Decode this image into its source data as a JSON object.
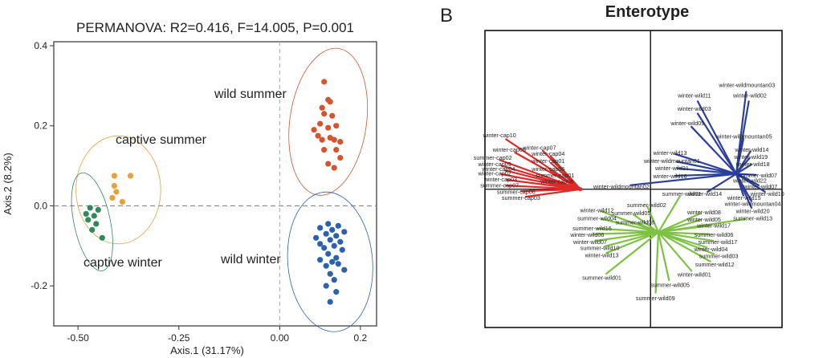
{
  "colors": {
    "wild_summer": "#d4552b",
    "wild_winter": "#2b62b0",
    "captive_summer": "#e9a03a",
    "captive_winter": "#2e8a5a",
    "red": "#e02a2a",
    "blue": "#2a3f9e",
    "green": "#7dc243",
    "axis": "#333333"
  },
  "panel_a": {
    "title": "PERMANOVA: R2=0.416, F=14.005, P=0.001",
    "xlabel": "Axis.1 (31.17%)",
    "ylabel": "Axis.2 (8.2%)",
    "xlim": [
      -0.56,
      0.24
    ],
    "ylim": [
      -0.3,
      0.41
    ],
    "xticks": [
      {
        "v": -0.5,
        "label": "-0.50"
      },
      {
        "v": -0.25,
        "label": "-0.25"
      },
      {
        "v": 0,
        "label": "0.00"
      },
      {
        "v": 0.2,
        "label": "0.2"
      }
    ],
    "yticks": [
      {
        "v": 0.4,
        "label": "0.4"
      },
      {
        "v": 0.2,
        "label": "0.2"
      },
      {
        "v": 0,
        "label": "0.0"
      },
      {
        "v": -0.2,
        "label": "-0.2"
      }
    ],
    "group_labels": {
      "wild_summer": "wild summer",
      "captive_summer": "captive summer",
      "captive_winter": "captive winter",
      "wild_winter": "wild winter"
    }
  },
  "panel_b": {
    "letter": "B",
    "title": "Enterotype"
  },
  "chart_data": [
    {
      "type": "scatter",
      "title": "PERMANOVA: R2=0.416, F=14.005, P=0.001",
      "xlabel": "Axis.1 (31.17%)",
      "ylabel": "Axis.2 (8.2%)",
      "xlim": [
        -0.56,
        0.24
      ],
      "ylim": [
        -0.3,
        0.41
      ],
      "series": [
        {
          "name": "wild summer",
          "color": "#d4552b",
          "points": [
            [
              0.11,
              0.31
            ],
            [
              0.12,
              0.265
            ],
            [
              0.105,
              0.245
            ],
            [
              0.125,
              0.26
            ],
            [
              0.11,
              0.23
            ],
            [
              0.13,
              0.225
            ],
            [
              0.1,
              0.205
            ],
            [
              0.14,
              0.2
            ],
            [
              0.12,
              0.195
            ],
            [
              0.085,
              0.19
            ],
            [
              0.095,
              0.175
            ],
            [
              0.125,
              0.17
            ],
            [
              0.105,
              0.165
            ],
            [
              0.135,
              0.165
            ],
            [
              0.15,
              0.16
            ],
            [
              0.11,
              0.14
            ],
            [
              0.14,
              0.14
            ],
            [
              0.15,
              0.12
            ],
            [
              0.12,
              0.105
            ],
            [
              0.135,
              0.095
            ]
          ]
        },
        {
          "name": "captive summer",
          "color": "#e9a03a",
          "points": [
            [
              -0.41,
              0.075
            ],
            [
              -0.37,
              0.075
            ],
            [
              -0.41,
              0.05
            ],
            [
              -0.405,
              0.035
            ],
            [
              -0.415,
              0.02
            ],
            [
              -0.39,
              0.01
            ]
          ]
        },
        {
          "name": "captive winter",
          "color": "#2e8a5a",
          "points": [
            [
              -0.47,
              -0.005
            ],
            [
              -0.45,
              -0.01
            ],
            [
              -0.48,
              -0.02
            ],
            [
              -0.46,
              -0.025
            ],
            [
              -0.475,
              -0.035
            ],
            [
              -0.455,
              -0.045
            ],
            [
              -0.465,
              -0.06
            ],
            [
              -0.44,
              -0.08
            ]
          ]
        },
        {
          "name": "wild winter",
          "color": "#2b62b0",
          "points": [
            [
              0.12,
              -0.045
            ],
            [
              0.145,
              -0.05
            ],
            [
              0.1,
              -0.055
            ],
            [
              0.13,
              -0.06
            ],
            [
              0.16,
              -0.065
            ],
            [
              0.115,
              -0.07
            ],
            [
              0.14,
              -0.075
            ],
            [
              0.09,
              -0.08
            ],
            [
              0.125,
              -0.085
            ],
            [
              0.15,
              -0.09
            ],
            [
              0.1,
              -0.095
            ],
            [
              0.135,
              -0.1
            ],
            [
              0.11,
              -0.105
            ],
            [
              0.155,
              -0.11
            ],
            [
              0.12,
              -0.12
            ],
            [
              0.14,
              -0.13
            ],
            [
              0.1,
              -0.135
            ],
            [
              0.13,
              -0.14
            ],
            [
              0.145,
              -0.145
            ],
            [
              0.115,
              -0.15
            ],
            [
              0.16,
              -0.16
            ],
            [
              0.125,
              -0.17
            ],
            [
              0.135,
              -0.185
            ],
            [
              0.115,
              -0.2
            ],
            [
              0.14,
              -0.215
            ],
            [
              0.125,
              -0.24
            ]
          ]
        }
      ],
      "ellipses": [
        {
          "group": "wild summer",
          "cx": 0.12,
          "cy": 0.21,
          "rx": 0.095,
          "ry": 0.185,
          "rot": 8
        },
        {
          "group": "captive summer",
          "cx": -0.4,
          "cy": 0.04,
          "rx": 0.105,
          "ry": 0.135,
          "rot": 0
        },
        {
          "group": "captive winter",
          "cx": -0.465,
          "cy": -0.04,
          "rx": 0.045,
          "ry": 0.125,
          "rot": -12
        },
        {
          "group": "wild winter",
          "cx": 0.125,
          "cy": -0.14,
          "rx": 0.105,
          "ry": 0.175,
          "rot": -5
        }
      ],
      "refline": {
        "x": 0,
        "y": 0,
        "style": "dashed"
      }
    },
    {
      "type": "scatter",
      "title": "Enterotype",
      "xlim": [
        -1.7,
        1.35
      ],
      "ylim": [
        -1.35,
        1.55
      ],
      "refline": {
        "x": 0,
        "y": 0,
        "style": "solid"
      },
      "clusters": [
        {
          "name": "red",
          "color": "#e02a2a",
          "center": [
            -0.72,
            0.0
          ],
          "labels": [
            {
              "t": "winter-cap10",
              "x": -1.55,
              "y": 0.53
            },
            {
              "t": "winter-cap07",
              "x": -1.14,
              "y": 0.41
            },
            {
              "t": "winter-cap05",
              "x": -1.45,
              "y": 0.39
            },
            {
              "t": "winter-cap04",
              "x": -1.05,
              "y": 0.35
            },
            {
              "t": "summer-cap02",
              "x": -1.62,
              "y": 0.31
            },
            {
              "t": "winter-cap01",
              "x": -1.05,
              "y": 0.28
            },
            {
              "t": "winter-cap09",
              "x": -1.6,
              "y": 0.25
            },
            {
              "t": "winter-cap04",
              "x": -1.56,
              "y": 0.2
            },
            {
              "t": "winter-cap06",
              "x": -1.05,
              "y": 0.2
            },
            {
              "t": "winter-cap02",
              "x": -1.6,
              "y": 0.16
            },
            {
              "t": "summer-cap01",
              "x": -0.98,
              "y": 0.14
            },
            {
              "t": "winter-cap03",
              "x": -1.54,
              "y": 0.1
            },
            {
              "t": "winter-cap08",
              "x": -0.96,
              "y": 0.08
            },
            {
              "t": "summer-cap07",
              "x": -1.55,
              "y": 0.04
            },
            {
              "t": "summer-cap06",
              "x": -1.38,
              "y": -0.02
            },
            {
              "t": "summer-cap03",
              "x": -1.33,
              "y": -0.08
            }
          ]
        },
        {
          "name": "blue",
          "color": "#2a3f9e",
          "center": [
            0.88,
            0.15
          ],
          "labels": [
            {
              "t": "winter-wildmountan03",
              "x": 0.99,
              "y": 1.02
            },
            {
              "t": "winter-wild11",
              "x": 0.45,
              "y": 0.92
            },
            {
              "t": "winter-wild02",
              "x": 1.02,
              "y": 0.92
            },
            {
              "t": "winter-wild03",
              "x": 0.45,
              "y": 0.79
            },
            {
              "t": "winter-wild09",
              "x": 0.38,
              "y": 0.65
            },
            {
              "t": "winter-wildmountan05",
              "x": 0.96,
              "y": 0.52
            },
            {
              "t": "winter-wild13",
              "x": 0.2,
              "y": 0.36
            },
            {
              "t": "winter-wild14",
              "x": 1.04,
              "y": 0.39
            },
            {
              "t": "winter-wildmountan01",
              "x": 0.22,
              "y": 0.28
            },
            {
              "t": "winter-wild19",
              "x": 1.03,
              "y": 0.32
            },
            {
              "t": "winter-wild18",
              "x": 1.05,
              "y": 0.25
            },
            {
              "t": "winter-wild21",
              "x": 0.22,
              "y": 0.21
            },
            {
              "t": "summer-wild07",
              "x": 1.1,
              "y": 0.14
            },
            {
              "t": "winter-wild16",
              "x": 0.2,
              "y": 0.13
            },
            {
              "t": "winter-wild22",
              "x": 1.02,
              "y": 0.09
            },
            {
              "t": "winter-wild07",
              "x": 1.13,
              "y": 0.03
            },
            {
              "t": "winter-wildmountan02",
              "x": -0.3,
              "y": 0.03
            },
            {
              "t": "winter-wild10",
              "x": 1.2,
              "y": -0.04
            },
            {
              "t": "winter-wild15",
              "x": 0.96,
              "y": -0.08
            },
            {
              "t": "winter-wildmountan04",
              "x": 1.05,
              "y": -0.14
            },
            {
              "t": "winter-wild20",
              "x": 1.05,
              "y": -0.21
            },
            {
              "t": "winter-wild14",
              "x": 0.56,
              "y": -0.04
            }
          ]
        },
        {
          "name": "green",
          "color": "#7dc243",
          "center": [
            0.08,
            -0.42
          ],
          "labels": [
            {
              "t": "summer-wild01",
              "x": 0.32,
              "y": -0.04
            },
            {
              "t": "summer-wild02",
              "x": -0.04,
              "y": -0.15
            },
            {
              "t": "winter-wild12",
              "x": -0.55,
              "y": -0.2
            },
            {
              "t": "summer-wild05",
              "x": -0.2,
              "y": -0.23
            },
            {
              "t": "summer-wild04",
              "x": -0.55,
              "y": -0.28
            },
            {
              "t": "summer-wild08",
              "x": -0.16,
              "y": -0.32
            },
            {
              "t": "summer-wild16",
              "x": -0.6,
              "y": -0.38
            },
            {
              "t": "winter-wild17",
              "x": 0.65,
              "y": -0.35
            },
            {
              "t": "winter-wild08",
              "x": 0.55,
              "y": -0.22
            },
            {
              "t": "winter-wild05",
              "x": 0.55,
              "y": -0.29
            },
            {
              "t": "summer-wild06",
              "x": 0.65,
              "y": -0.44
            },
            {
              "t": "summer-wild13",
              "x": 1.05,
              "y": -0.28
            },
            {
              "t": "winter-wild06",
              "x": -0.65,
              "y": -0.44
            },
            {
              "t": "winter-wild07",
              "x": -0.62,
              "y": -0.51
            },
            {
              "t": "summer-wild17",
              "x": 0.69,
              "y": -0.51
            },
            {
              "t": "summer-wild10",
              "x": -0.52,
              "y": -0.57
            },
            {
              "t": "winter-wild04",
              "x": 0.62,
              "y": -0.58
            },
            {
              "t": "winter-wild13",
              "x": -0.5,
              "y": -0.64
            },
            {
              "t": "summer-wild03",
              "x": 0.7,
              "y": -0.65
            },
            {
              "t": "summer-wild12",
              "x": 0.66,
              "y": -0.73
            },
            {
              "t": "summer-wild01",
              "x": -0.5,
              "y": -0.86
            },
            {
              "t": "winter-wild01",
              "x": 0.45,
              "y": -0.83
            },
            {
              "t": "summer-wild05",
              "x": 0.2,
              "y": -0.93
            },
            {
              "t": "summer-wild09",
              "x": 0.05,
              "y": -1.06
            }
          ]
        }
      ]
    }
  ]
}
